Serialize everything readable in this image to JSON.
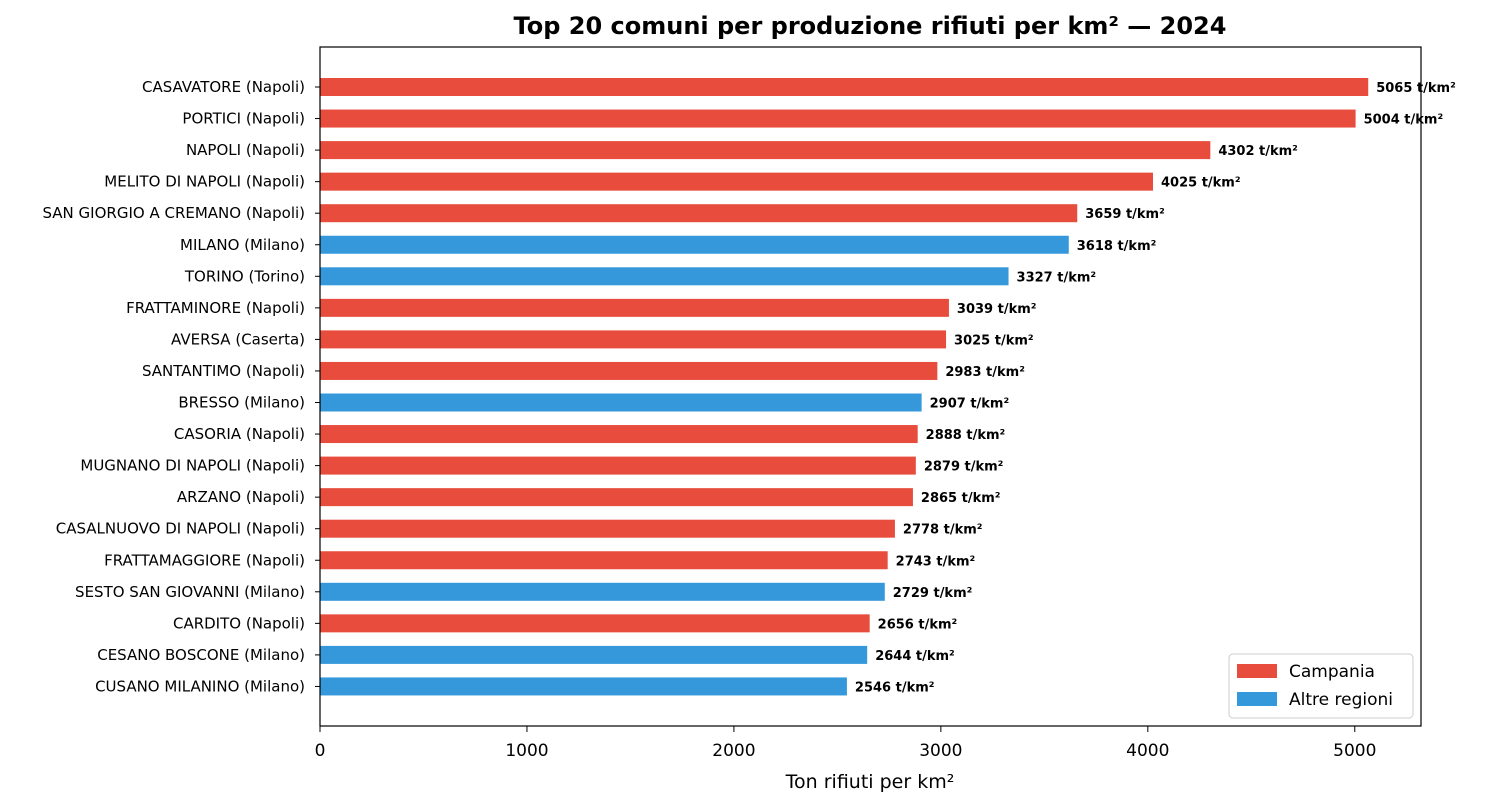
{
  "chart_data": {
    "type": "bar",
    "orientation": "horizontal",
    "title": "Top 20 comuni per produzione rifiuti per km² — 2024",
    "xlabel": "Ton rifiuti per km²",
    "ylabel": "",
    "xlim": [
      0,
      5320
    ],
    "x_ticks": [
      0,
      1000,
      2000,
      3000,
      4000,
      5000
    ],
    "value_suffix": " t/km²",
    "grid": false,
    "legend_position": "bottom-right",
    "legend": [
      {
        "label": "Campania",
        "color": "#e74c3c"
      },
      {
        "label": "Altre regioni",
        "color": "#3498db"
      }
    ],
    "categories": [
      "CASAVATORE (Napoli)",
      "PORTICI (Napoli)",
      "NAPOLI (Napoli)",
      "MELITO DI NAPOLI (Napoli)",
      "SAN GIORGIO A CREMANO (Napoli)",
      "MILANO (Milano)",
      "TORINO (Torino)",
      "FRATTAMINORE (Napoli)",
      "AVERSA (Caserta)",
      "SANTANTIMO (Napoli)",
      "BRESSO (Milano)",
      "CASORIA (Napoli)",
      "MUGNANO DI NAPOLI (Napoli)",
      "ARZANO (Napoli)",
      "CASALNUOVO DI NAPOLI (Napoli)",
      "FRATTAMAGGIORE (Napoli)",
      "SESTO SAN GIOVANNI (Milano)",
      "CARDITO (Napoli)",
      "CESANO BOSCONE (Milano)",
      "CUSANO MILANINO (Milano)"
    ],
    "values": [
      5065,
      5004,
      4302,
      4025,
      3659,
      3618,
      3327,
      3039,
      3025,
      2983,
      2907,
      2888,
      2879,
      2865,
      2778,
      2743,
      2729,
      2656,
      2644,
      2546
    ],
    "groups": [
      "Campania",
      "Campania",
      "Campania",
      "Campania",
      "Campania",
      "Altre regioni",
      "Altre regioni",
      "Campania",
      "Campania",
      "Campania",
      "Altre regioni",
      "Campania",
      "Campania",
      "Campania",
      "Campania",
      "Campania",
      "Altre regioni",
      "Campania",
      "Altre regioni",
      "Altre regioni"
    ]
  }
}
